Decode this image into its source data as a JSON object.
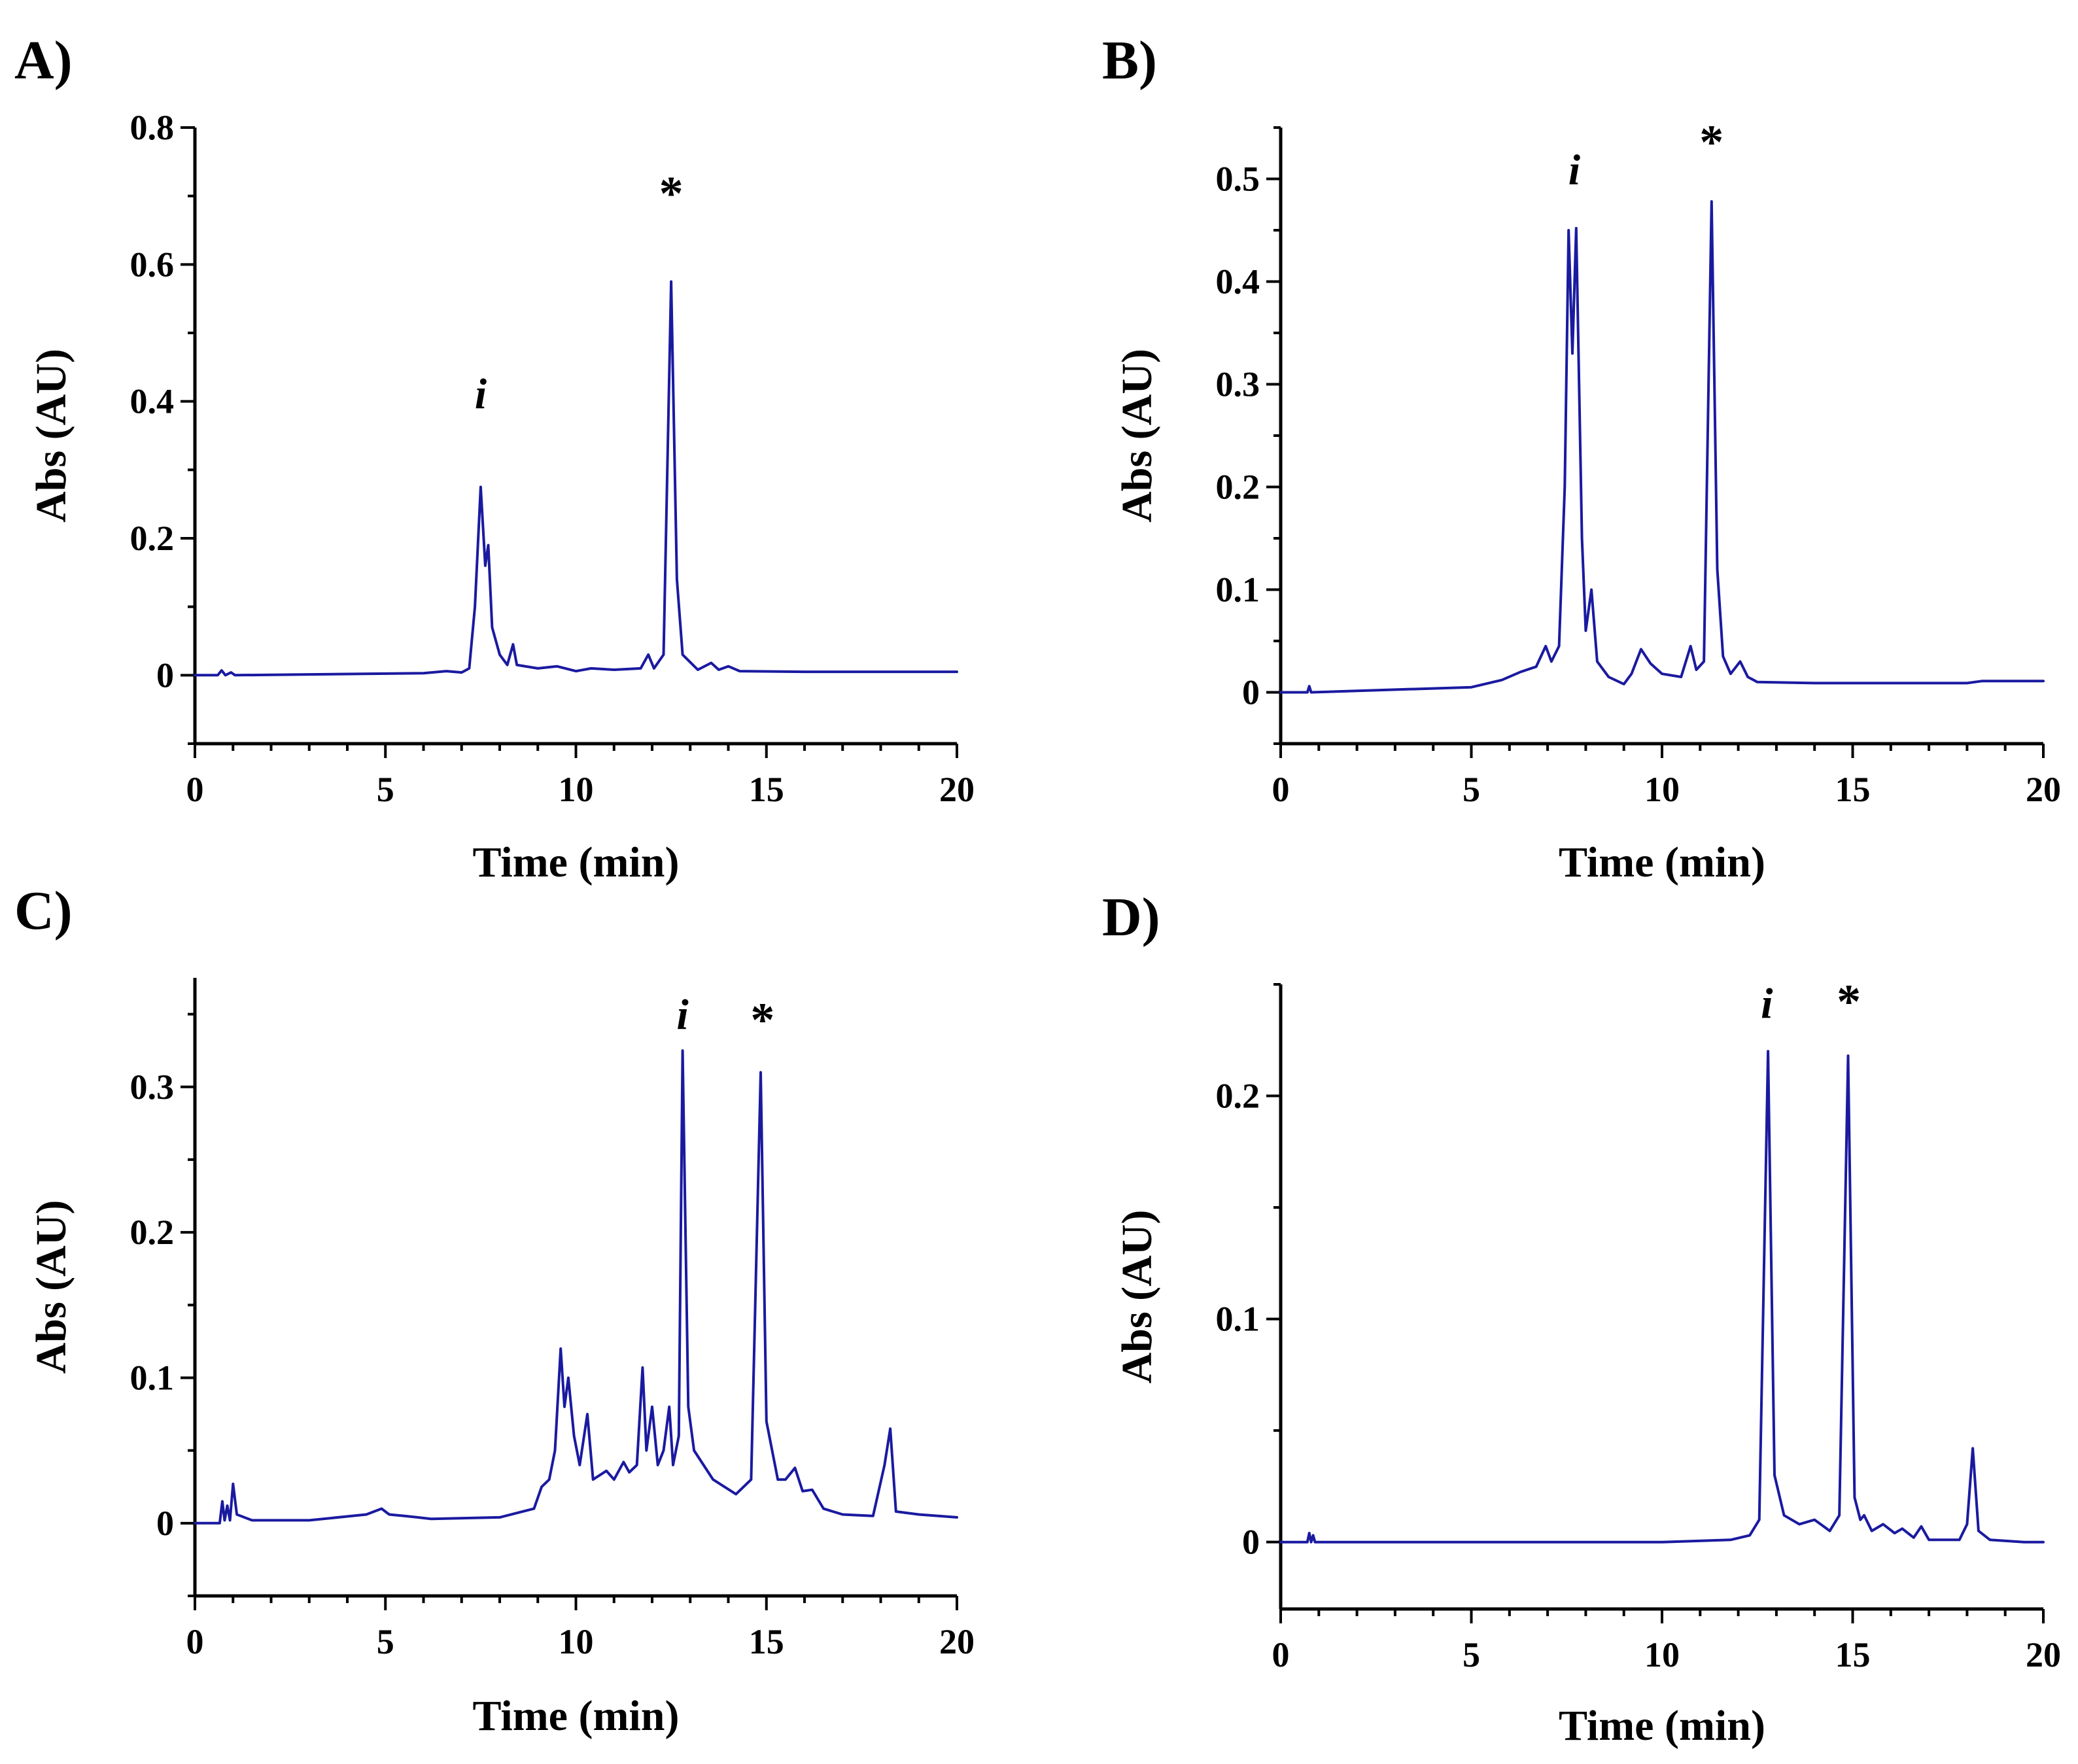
{
  "figure": {
    "series_color": "#1a1aa0"
  },
  "chart_data": [
    {
      "panel_label": "A)",
      "type": "line",
      "xlabel": "Time (min)",
      "ylabel": "Abs (AU)",
      "xlim": [
        0,
        20
      ],
      "ylim": [
        -0.1,
        0.8
      ],
      "xticks": [
        0,
        5,
        10,
        15,
        20
      ],
      "xtick_labels": [
        "0",
        "5",
        "10",
        "15",
        "20"
      ],
      "yticks": [
        0,
        0.2,
        0.4,
        0.6,
        0.8
      ],
      "ytick_labels": [
        "0",
        "0.2",
        "0.4",
        "0.6",
        "0.8"
      ],
      "yminor_step": 0.1,
      "baseline": [
        [
          0,
          0
        ],
        [
          0.6,
          0
        ],
        [
          0.7,
          0.007
        ],
        [
          0.8,
          0
        ],
        [
          0.95,
          0.004
        ],
        [
          1.05,
          0
        ],
        [
          6,
          0.003
        ],
        [
          6.6,
          0.006
        ],
        [
          7.0,
          0.004
        ],
        [
          7.2,
          0.01
        ],
        [
          7.35,
          0.1
        ],
        [
          7.5,
          0.275
        ],
        [
          7.62,
          0.16
        ],
        [
          7.7,
          0.19
        ],
        [
          7.8,
          0.07
        ],
        [
          8.0,
          0.03
        ],
        [
          8.2,
          0.015
        ],
        [
          8.35,
          0.045
        ],
        [
          8.45,
          0.015
        ],
        [
          9,
          0.01
        ],
        [
          9.5,
          0.013
        ],
        [
          10,
          0.006
        ],
        [
          10.4,
          0.01
        ],
        [
          11,
          0.008
        ],
        [
          11.7,
          0.01
        ],
        [
          11.9,
          0.03
        ],
        [
          12.05,
          0.01
        ],
        [
          12.3,
          0.03
        ],
        [
          12.5,
          0.575
        ],
        [
          12.65,
          0.14
        ],
        [
          12.8,
          0.03
        ],
        [
          13.2,
          0.008
        ],
        [
          13.55,
          0.018
        ],
        [
          13.75,
          0.008
        ],
        [
          14.0,
          0.013
        ],
        [
          14.3,
          0.006
        ],
        [
          16,
          0.005
        ],
        [
          20,
          0.005
        ]
      ],
      "annotations": [
        {
          "text": "i",
          "x": 7.5,
          "y": 0.39,
          "style": "italic"
        },
        {
          "text": "*",
          "x": 12.5,
          "y": 0.68,
          "style": "star"
        }
      ]
    },
    {
      "panel_label": "B)",
      "type": "line",
      "xlabel": "Time (min)",
      "ylabel": "Abs (AU)",
      "xlim": [
        0,
        20
      ],
      "ylim": [
        -0.05,
        0.55
      ],
      "xticks": [
        0,
        5,
        10,
        15,
        20
      ],
      "xtick_labels": [
        "0",
        "5",
        "10",
        "15",
        "20"
      ],
      "yticks": [
        0,
        0.1,
        0.2,
        0.3,
        0.4,
        0.5
      ],
      "ytick_labels": [
        "0",
        "0.1",
        "0.2",
        "0.3",
        "0.4",
        "0.5"
      ],
      "yminor_step": 0.05,
      "baseline": [
        [
          0,
          0
        ],
        [
          0.7,
          0
        ],
        [
          0.75,
          0.006
        ],
        [
          0.8,
          0
        ],
        [
          5,
          0.005
        ],
        [
          5.8,
          0.012
        ],
        [
          6.3,
          0.02
        ],
        [
          6.7,
          0.025
        ],
        [
          6.95,
          0.045
        ],
        [
          7.1,
          0.03
        ],
        [
          7.3,
          0.045
        ],
        [
          7.45,
          0.2
        ],
        [
          7.55,
          0.45
        ],
        [
          7.65,
          0.33
        ],
        [
          7.75,
          0.452
        ],
        [
          7.9,
          0.15
        ],
        [
          8.0,
          0.06
        ],
        [
          8.15,
          0.1
        ],
        [
          8.3,
          0.03
        ],
        [
          8.6,
          0.015
        ],
        [
          9.0,
          0.008
        ],
        [
          9.2,
          0.018
        ],
        [
          9.45,
          0.042
        ],
        [
          9.7,
          0.028
        ],
        [
          10.0,
          0.018
        ],
        [
          10.5,
          0.015
        ],
        [
          10.75,
          0.045
        ],
        [
          10.9,
          0.022
        ],
        [
          11.1,
          0.03
        ],
        [
          11.3,
          0.478
        ],
        [
          11.45,
          0.12
        ],
        [
          11.6,
          0.035
        ],
        [
          11.8,
          0.018
        ],
        [
          12.05,
          0.03
        ],
        [
          12.25,
          0.015
        ],
        [
          12.5,
          0.01
        ],
        [
          14,
          0.009
        ],
        [
          18,
          0.009
        ],
        [
          18.4,
          0.011
        ],
        [
          20,
          0.011
        ]
      ],
      "annotations": [
        {
          "text": "i",
          "x": 7.7,
          "y": 0.495,
          "style": "italic"
        },
        {
          "text": "*",
          "x": 11.3,
          "y": 0.52,
          "style": "star"
        }
      ]
    },
    {
      "panel_label": "C)",
      "type": "line",
      "xlabel": "Time (min)",
      "ylabel": "Abs (AU)",
      "xlim": [
        0,
        20
      ],
      "ylim": [
        -0.05,
        0.375
      ],
      "xticks": [
        0,
        5,
        10,
        15,
        20
      ],
      "xtick_labels": [
        "0",
        "5",
        "10",
        "15",
        "20"
      ],
      "yticks": [
        0,
        0.1,
        0.2,
        0.3
      ],
      "ytick_labels": [
        "0",
        "0.1",
        "0.2",
        "0.3"
      ],
      "yminor_step": 0.05,
      "baseline": [
        [
          0,
          0
        ],
        [
          0.65,
          0
        ],
        [
          0.72,
          0.015
        ],
        [
          0.78,
          0.002
        ],
        [
          0.85,
          0.012
        ],
        [
          0.92,
          0.002
        ],
        [
          1.0,
          0.027
        ],
        [
          1.1,
          0.006
        ],
        [
          1.5,
          0.002
        ],
        [
          3,
          0.002
        ],
        [
          4.5,
          0.006
        ],
        [
          4.9,
          0.01
        ],
        [
          5.1,
          0.006
        ],
        [
          5.5,
          0.005
        ],
        [
          6.2,
          0.003
        ],
        [
          8,
          0.004
        ],
        [
          8.9,
          0.01
        ],
        [
          9.1,
          0.025
        ],
        [
          9.3,
          0.03
        ],
        [
          9.45,
          0.05
        ],
        [
          9.6,
          0.12
        ],
        [
          9.7,
          0.08
        ],
        [
          9.8,
          0.1
        ],
        [
          9.95,
          0.06
        ],
        [
          10.1,
          0.04
        ],
        [
          10.3,
          0.075
        ],
        [
          10.45,
          0.03
        ],
        [
          10.8,
          0.036
        ],
        [
          11,
          0.03
        ],
        [
          11.25,
          0.042
        ],
        [
          11.4,
          0.035
        ],
        [
          11.6,
          0.04
        ],
        [
          11.75,
          0.107
        ],
        [
          11.85,
          0.05
        ],
        [
          12.0,
          0.08
        ],
        [
          12.15,
          0.04
        ],
        [
          12.3,
          0.05
        ],
        [
          12.45,
          0.08
        ],
        [
          12.55,
          0.04
        ],
        [
          12.7,
          0.06
        ],
        [
          12.8,
          0.325
        ],
        [
          12.95,
          0.08
        ],
        [
          13.1,
          0.05
        ],
        [
          13.6,
          0.03
        ],
        [
          14.2,
          0.02
        ],
        [
          14.6,
          0.03
        ],
        [
          14.85,
          0.31
        ],
        [
          15.0,
          0.07
        ],
        [
          15.3,
          0.03
        ],
        [
          15.5,
          0.03
        ],
        [
          15.75,
          0.038
        ],
        [
          15.95,
          0.022
        ],
        [
          16.2,
          0.023
        ],
        [
          16.5,
          0.01
        ],
        [
          17,
          0.006
        ],
        [
          17.8,
          0.005
        ],
        [
          18.1,
          0.04
        ],
        [
          18.25,
          0.065
        ],
        [
          18.4,
          0.008
        ],
        [
          19,
          0.006
        ],
        [
          20,
          0.004
        ]
      ],
      "annotations": [
        {
          "text": "i",
          "x": 12.8,
          "y": 0.34,
          "style": "italic"
        },
        {
          "text": "*",
          "x": 14.9,
          "y": 0.335,
          "style": "star"
        }
      ]
    },
    {
      "panel_label": "D)",
      "type": "line",
      "xlabel": "Time (min)",
      "ylabel": "Abs (AU)",
      "xlim": [
        0,
        20
      ],
      "ylim": [
        -0.03,
        0.25
      ],
      "xticks": [
        0,
        5,
        10,
        15,
        20
      ],
      "xtick_labels": [
        "0",
        "5",
        "10",
        "15",
        "20"
      ],
      "yticks": [
        0,
        0.1,
        0.2
      ],
      "ytick_labels": [
        "0",
        "0.1",
        "0.2"
      ],
      "yminor_step": 0.05,
      "baseline": [
        [
          0,
          0
        ],
        [
          0.7,
          0
        ],
        [
          0.75,
          0.004
        ],
        [
          0.8,
          0
        ],
        [
          0.85,
          0.003
        ],
        [
          0.9,
          0
        ],
        [
          10,
          0
        ],
        [
          11.8,
          0.001
        ],
        [
          12.3,
          0.003
        ],
        [
          12.55,
          0.01
        ],
        [
          12.78,
          0.22
        ],
        [
          12.95,
          0.03
        ],
        [
          13.2,
          0.012
        ],
        [
          13.6,
          0.008
        ],
        [
          14.0,
          0.01
        ],
        [
          14.4,
          0.005
        ],
        [
          14.65,
          0.012
        ],
        [
          14.88,
          0.218
        ],
        [
          15.05,
          0.02
        ],
        [
          15.2,
          0.01
        ],
        [
          15.3,
          0.012
        ],
        [
          15.5,
          0.005
        ],
        [
          15.8,
          0.008
        ],
        [
          16.1,
          0.004
        ],
        [
          16.3,
          0.006
        ],
        [
          16.6,
          0.002
        ],
        [
          16.8,
          0.007
        ],
        [
          17.0,
          0.001
        ],
        [
          17.8,
          0.001
        ],
        [
          18.0,
          0.008
        ],
        [
          18.15,
          0.042
        ],
        [
          18.3,
          0.005
        ],
        [
          18.6,
          0.001
        ],
        [
          19.5,
          0
        ],
        [
          20,
          0
        ]
      ],
      "annotations": [
        {
          "text": "i",
          "x": 12.75,
          "y": 0.235,
          "style": "italic"
        },
        {
          "text": "*",
          "x": 14.9,
          "y": 0.235,
          "style": "star"
        }
      ]
    }
  ]
}
